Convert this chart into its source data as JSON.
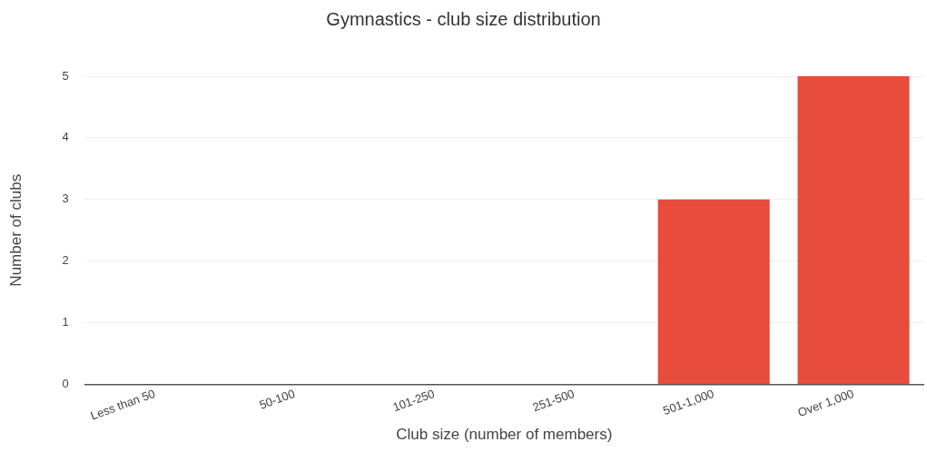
{
  "chart_data": {
    "type": "bar",
    "title": "Gymnastics - club size distribution",
    "xlabel": "Club size (number of members)",
    "ylabel": "Number of clubs",
    "categories": [
      "Less than 50",
      "50-100",
      "101-250",
      "251-500",
      "501-1,000",
      "Over 1,000"
    ],
    "values": [
      0,
      0,
      0,
      0,
      3,
      5
    ],
    "color": "#e74c3c",
    "ylim": [
      0,
      5
    ],
    "yticks": [
      0,
      1,
      2,
      3,
      4,
      5
    ],
    "grid": "y",
    "legend": false
  }
}
